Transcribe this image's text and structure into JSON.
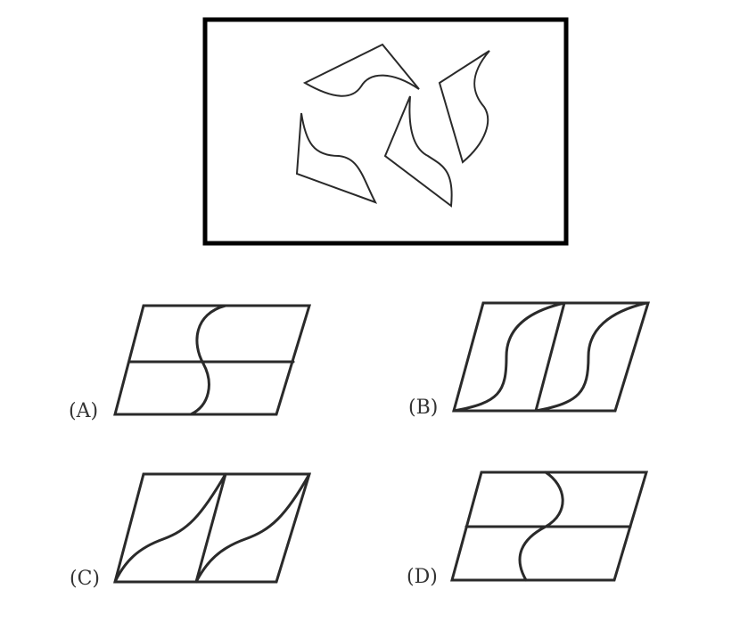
{
  "question": {
    "pieces": [
      "piece-1",
      "piece-2",
      "piece-3",
      "piece-4"
    ]
  },
  "options": [
    {
      "id": "A",
      "label": "(A)"
    },
    {
      "id": "B",
      "label": "(B)"
    },
    {
      "id": "C",
      "label": "(C)"
    },
    {
      "id": "D",
      "label": "(D)"
    }
  ]
}
